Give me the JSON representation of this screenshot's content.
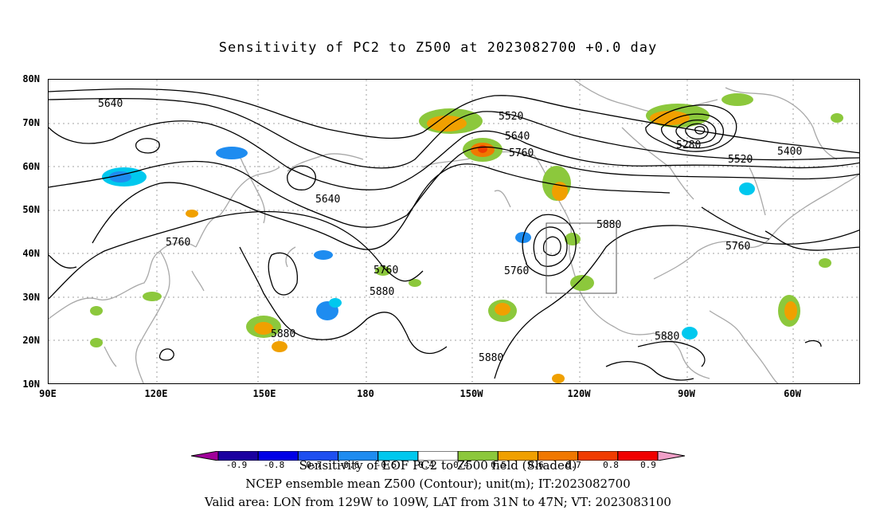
{
  "title": "Sensitivity of PC2 to Z500 at 2023082700 +0.0 day",
  "lat_labels": [
    "80N",
    "70N",
    "60N",
    "50N",
    "40N",
    "30N",
    "20N",
    "10N"
  ],
  "lon_labels": [
    "90E",
    "120E",
    "150E",
    "180",
    "150W",
    "120W",
    "90W",
    "60W"
  ],
  "contour_labels": [
    {
      "text": "5640"
    },
    {
      "text": "5520"
    },
    {
      "text": "5640"
    },
    {
      "text": "5760"
    },
    {
      "text": "5280"
    },
    {
      "text": "5400"
    },
    {
      "text": "5520"
    },
    {
      "text": "5640"
    },
    {
      "text": "5760"
    },
    {
      "text": "5880"
    },
    {
      "text": "5760"
    },
    {
      "text": "5760"
    },
    {
      "text": "5880"
    },
    {
      "text": "5880"
    },
    {
      "text": "5760"
    },
    {
      "text": "5880"
    },
    {
      "text": "5880"
    }
  ],
  "colorbar": {
    "labels": [
      "-0.9",
      "-0.8",
      "-0.7",
      "-0.6",
      "-0.5",
      "-0.4",
      "0.4",
      "0.5",
      "0.6",
      "0.7",
      "0.8",
      "0.9"
    ],
    "colors": [
      "#a0009a",
      "#1b00a0",
      "#0000e6",
      "#1e4ff0",
      "#1e8cf0",
      "#00c8ee",
      "#ffffff",
      "#8cc83c",
      "#f0a000",
      "#f07800",
      "#f03c00",
      "#f00000",
      "#f0a0c8"
    ]
  },
  "footer": {
    "line1": "Sensitivity of EOF PC2 to Z500 field (Shaded)",
    "line2": "NCEP ensemble mean Z500 (Contour); unit(m); IT:2023082700",
    "line3": "Valid area: LON from 129W to 109W, LAT from 31N to 47N; VT: 2023083100"
  },
  "colors": {
    "contour": "#000000",
    "coastline": "#a8a8a8",
    "grid": "#a0a0a0",
    "green": "#8cc83c",
    "orange": "#f0a000",
    "darkorange": "#f07800",
    "red": "#f03c00",
    "blue": "#1e8cf0",
    "cyan": "#00c8ee"
  }
}
